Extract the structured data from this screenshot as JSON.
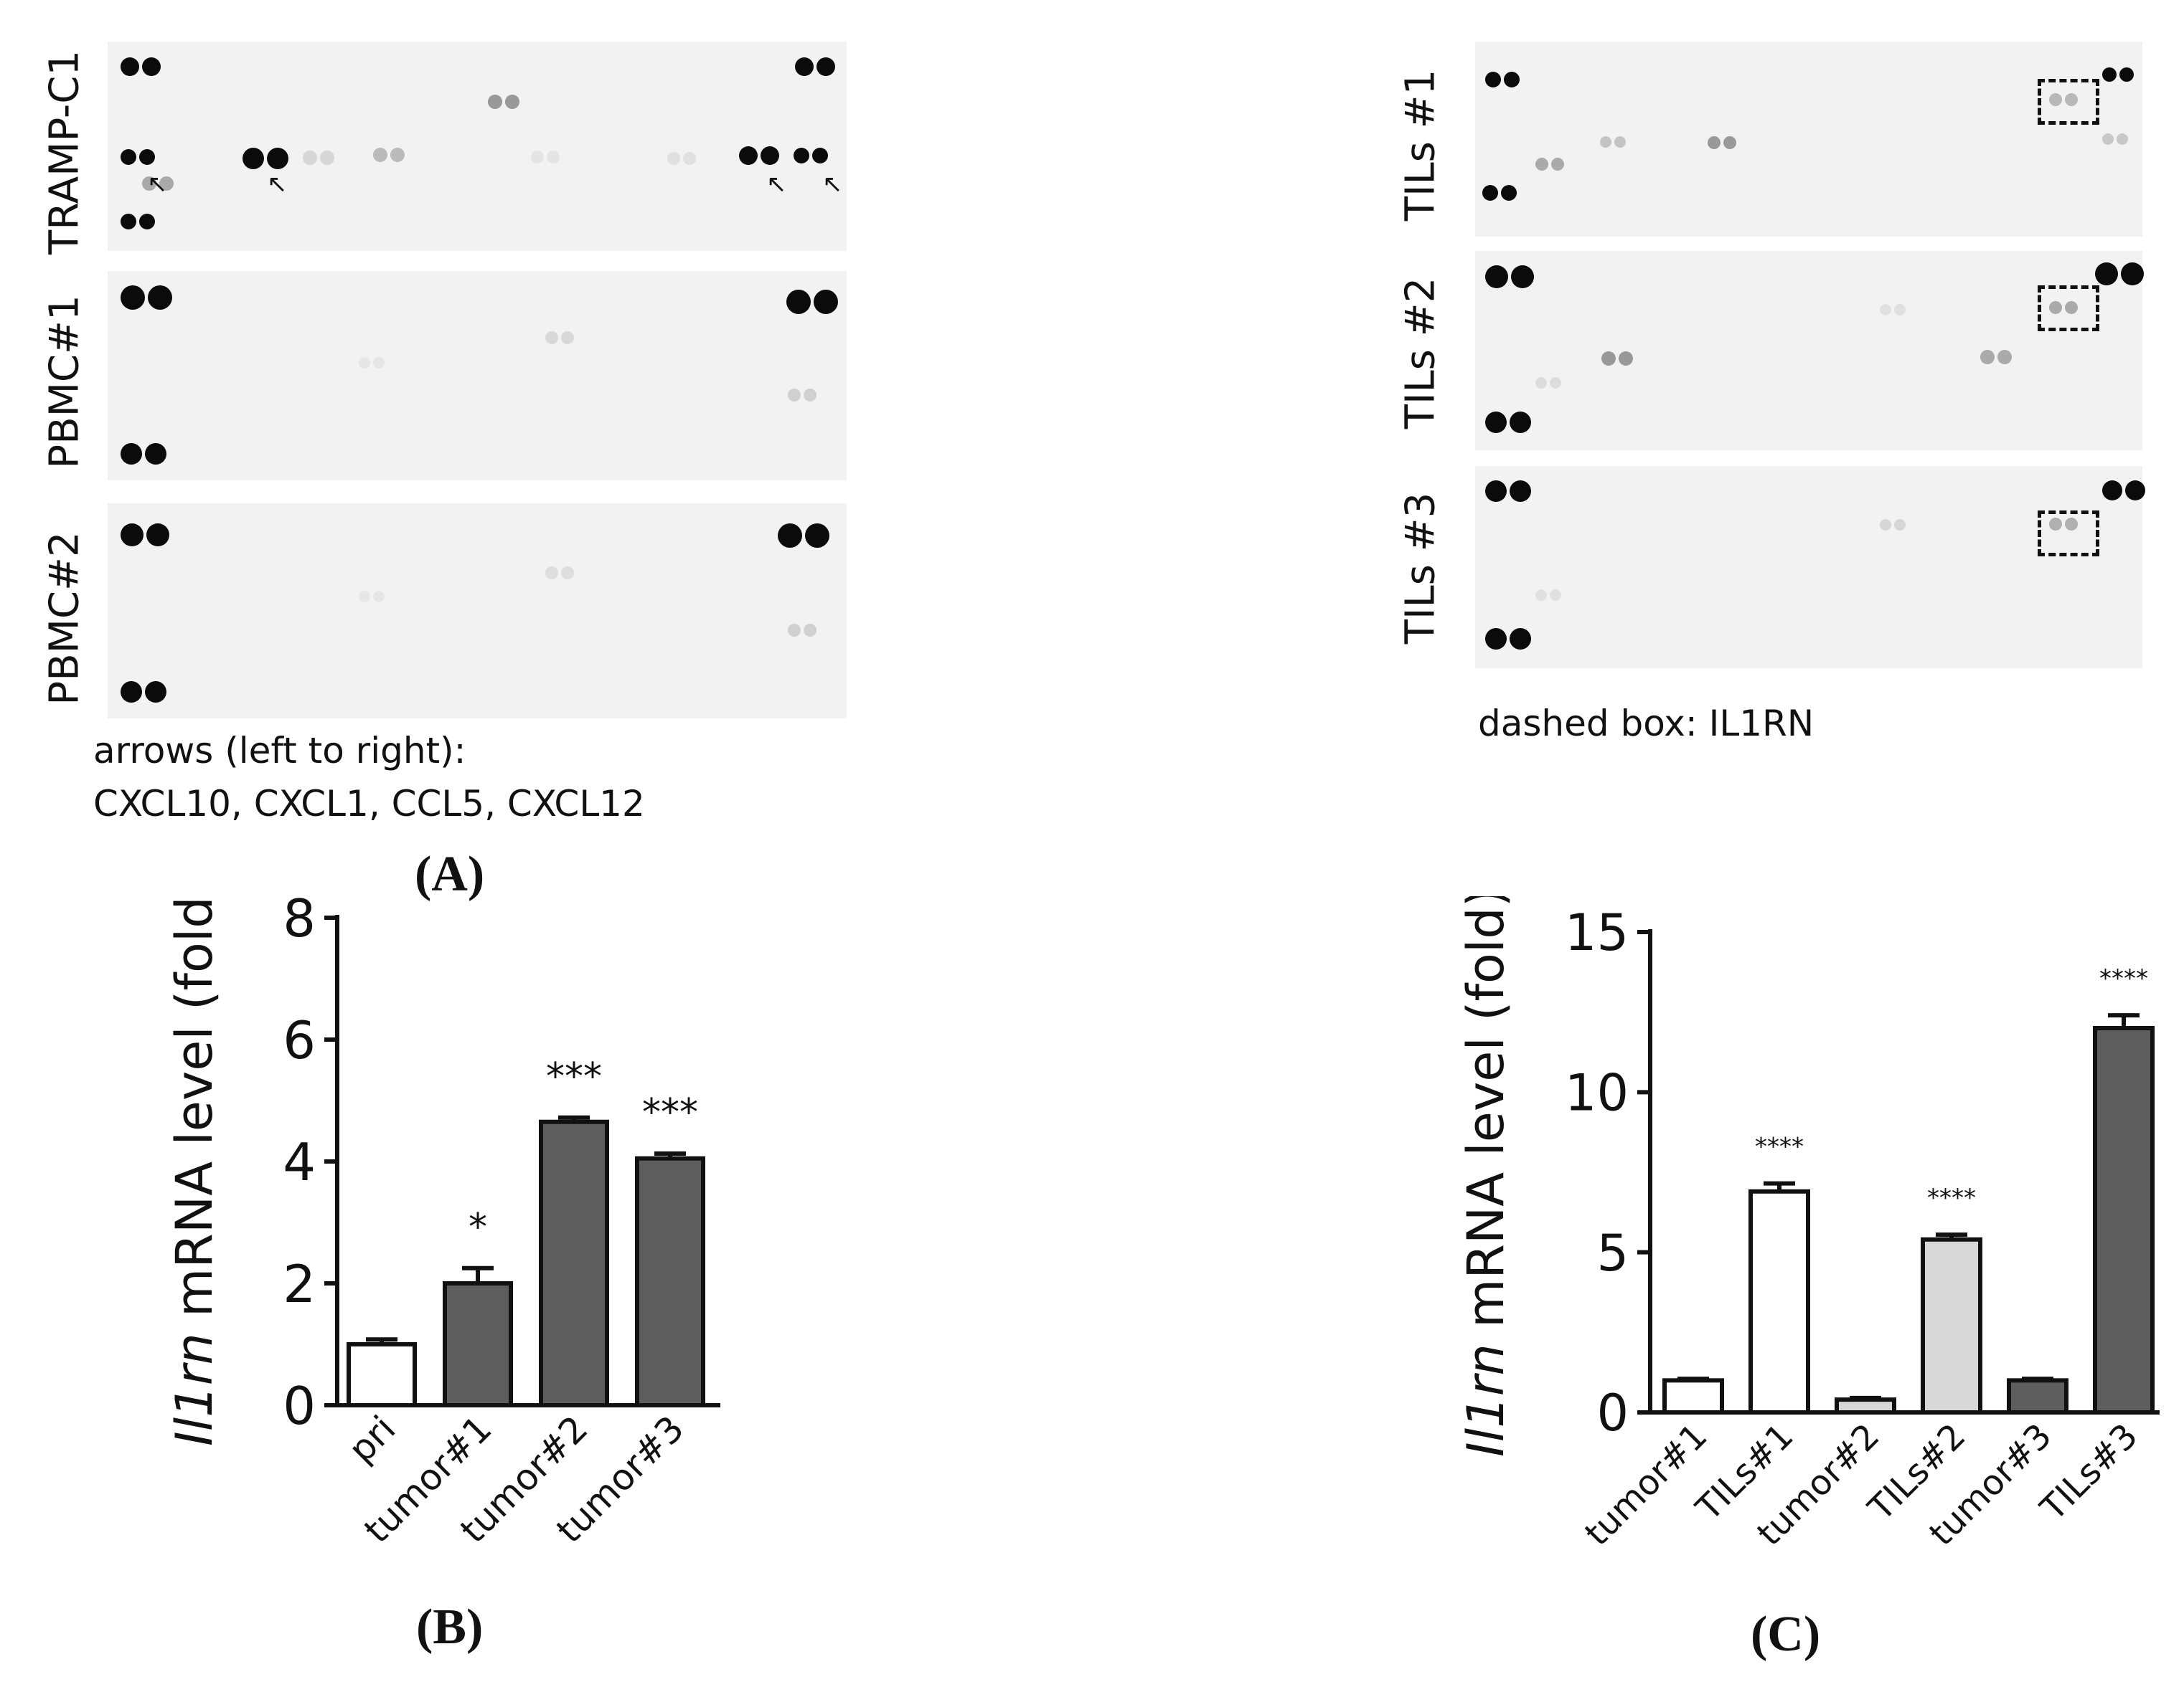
{
  "panel_a": {
    "letter": "(A)",
    "arrays": [
      {
        "label": "TRAMP-C1"
      },
      {
        "label": "PBMC#1"
      },
      {
        "label": "PBMC#2"
      }
    ],
    "caption_line1": "arrows (left to right):",
    "caption_line2": "CXCL10, CXCL1, CCL5, CXCL12"
  },
  "panel_til": {
    "arrays": [
      {
        "label": "TILs #1"
      },
      {
        "label": "TILs #2"
      },
      {
        "label": "TILs #3"
      }
    ],
    "caption": "dashed box: IL1RN"
  },
  "panel_b": {
    "letter": "(B)"
  },
  "panel_c": {
    "letter": "(C)"
  },
  "chart_data": [
    {
      "type": "bar",
      "panel": "B",
      "ylabel_italic": "Il1rn",
      "ylabel_rest": " mRNA level (fold)",
      "ylim": [
        0,
        8
      ],
      "yticks": [
        0,
        2,
        4,
        6,
        8
      ],
      "categories": [
        "pri",
        "tumor#1",
        "tumor#2",
        "tumor#3"
      ],
      "values": [
        1.0,
        2.0,
        4.65,
        4.05
      ],
      "errors": [
        0.08,
        0.25,
        0.07,
        0.08
      ],
      "fills": [
        "#ffffff",
        "#5e5e5e",
        "#5e5e5e",
        "#5e5e5e"
      ],
      "significance": [
        "",
        "*",
        "***",
        "***"
      ]
    },
    {
      "type": "bar",
      "panel": "C",
      "ylabel_italic": "Il1rn",
      "ylabel_rest": " mRNA level (fold)",
      "ylim": [
        0,
        15
      ],
      "yticks": [
        0,
        5,
        10,
        15
      ],
      "categories": [
        "tumor#1",
        "TILs#1",
        "tumor#2",
        "TILs#2",
        "tumor#3",
        "TILs#3"
      ],
      "values": [
        1.0,
        6.9,
        0.4,
        5.4,
        1.0,
        12.0
      ],
      "errors": [
        0.05,
        0.25,
        0.05,
        0.15,
        0.05,
        0.4
      ],
      "fills": [
        "#ffffff",
        "#ffffff",
        "#d8d8d8",
        "#d8d8d8",
        "#5e5e5e",
        "#5e5e5e"
      ],
      "significance": [
        "",
        "****",
        "",
        "****",
        "",
        "****"
      ]
    }
  ]
}
